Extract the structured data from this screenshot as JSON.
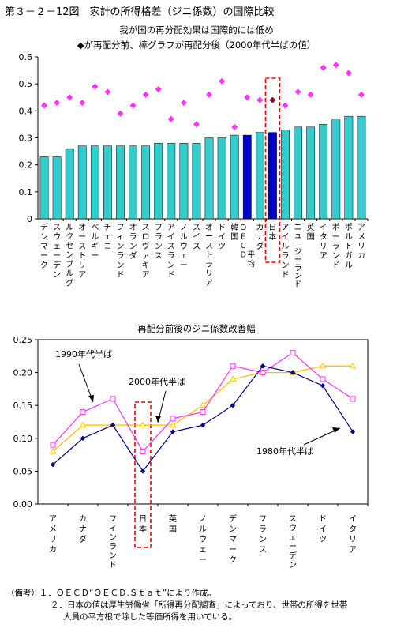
{
  "figure_title": "第３－２－12図　家計の所得格差（ジニ係数）の国際比較",
  "notes": {
    "label": "（備考）",
    "lines": [
      "１．ＯＥＣＤ“ＯＥＣＤ.Ｓｔａｔ”により作成。",
      "２．日本の値は厚生労働省「所得再分配調査」によっており、世帯の所得を世帯",
      "人員の平方根で除した等価所得を用いている。"
    ]
  },
  "colors": {
    "bar": "#33CCCC",
    "bar_highlight": "#0000CC",
    "marker": "#FF33FF",
    "marker_highlight": "#990033",
    "line1980": "#000080",
    "line1990": "#FF33FF",
    "line2000": "#FFBB00",
    "highlight_box": "#FF0000"
  },
  "chart_data": [
    {
      "type": "bar",
      "title": "我が国の再分配効果は国際的には低め",
      "subtitle": "◆が再配分前、棒グラフが再配分後（2000年代半ばの値）",
      "ylim": [
        0,
        0.6
      ],
      "yticks": [
        "0",
        "0.1",
        "0.2",
        "0.3",
        "0.4",
        "0.5",
        "0.6"
      ],
      "grid": false,
      "categories": [
        "デンマーク",
        "スウェーデン",
        "ルクセンブルグ",
        "オーストリア",
        "ベルギー",
        "チェコ",
        "フィンランド",
        "オランダ",
        "スロヴァキア",
        "フランス",
        "アイスランド",
        "ノルウェー",
        "スイス",
        "オーストラリア",
        "ドイツ",
        "韓国",
        "ＯＥＣＤ平均",
        "カナダ",
        "日本",
        "アイルランド",
        "ニュージーランド",
        "英国",
        "イタリア",
        "ポーランド",
        "ポルトガル",
        "アメリカ"
      ],
      "highlight": [
        "ＯＥＣＤ平均",
        "日本"
      ],
      "series": [
        {
          "name": "再分配後",
          "values": [
            0.23,
            0.23,
            0.26,
            0.27,
            0.27,
            0.27,
            0.27,
            0.27,
            0.27,
            0.28,
            0.28,
            0.28,
            0.28,
            0.3,
            0.3,
            0.31,
            0.31,
            0.32,
            0.32,
            0.33,
            0.34,
            0.34,
            0.35,
            0.37,
            0.38,
            0.38
          ]
        },
        {
          "name": "再分配前",
          "values": [
            0.42,
            0.43,
            0.45,
            0.43,
            0.49,
            0.47,
            0.39,
            0.42,
            0.46,
            0.48,
            0.37,
            0.43,
            0.35,
            0.46,
            0.51,
            0.34,
            0.45,
            0.44,
            0.44,
            0.42,
            0.47,
            0.46,
            0.56,
            0.57,
            0.54,
            0.46
          ]
        }
      ]
    },
    {
      "type": "line",
      "title": "再配分前後のジニ係数改善幅",
      "ylim": [
        0,
        0.25
      ],
      "yticks": [
        "0.00",
        "0.05",
        "0.10",
        "0.15",
        "0.20",
        "0.25"
      ],
      "grid": false,
      "categories": [
        "アメリカ",
        "カナダ",
        "フィンランド",
        "日本",
        "英国",
        "ノルウェー",
        "デンマーク",
        "フランス",
        "スウェーデン",
        "ドイツ",
        "イタリア"
      ],
      "highlight": [
        "日本"
      ],
      "series": [
        {
          "name": "1980年代半ば",
          "values": [
            0.06,
            0.1,
            0.12,
            0.05,
            0.11,
            0.12,
            0.15,
            0.21,
            0.2,
            0.18,
            0.11
          ]
        },
        {
          "name": "1990年代半ば",
          "values": [
            0.09,
            0.14,
            0.16,
            0.08,
            0.13,
            0.14,
            0.21,
            0.2,
            0.23,
            0.19,
            0.16
          ]
        },
        {
          "name": "2000年代半ば",
          "values": [
            0.08,
            0.12,
            0.12,
            0.12,
            0.12,
            0.15,
            0.19,
            0.2,
            0.2,
            0.21,
            0.21
          ]
        }
      ]
    }
  ]
}
